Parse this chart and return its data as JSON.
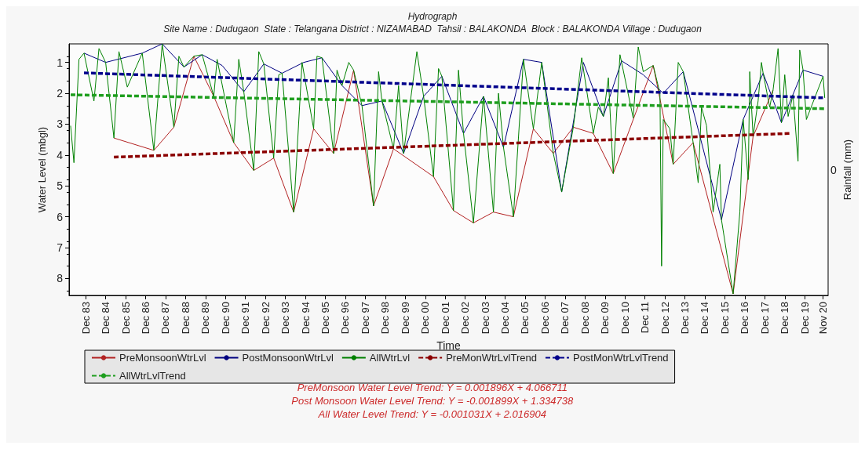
{
  "chart_data": {
    "type": "line",
    "title": "Hydrograph",
    "subtitle": "Site Name : Dudugaon  State : Telangana District : NIZAMABAD  Tahsil : BALAKONDA  Block : BALAKONDA Village : Dudugaon",
    "xlabel": "Time",
    "ylabel": "Water Level (mbgl)",
    "y2label": "Rainfall (mm)",
    "ylim": [
      8.55,
      0.4
    ],
    "yticks": [
      1,
      2,
      3,
      4,
      5,
      6,
      7,
      8
    ],
    "xlim": [
      "1983-02",
      "2021-02"
    ],
    "xticks": [
      {
        "value": "1983-12",
        "label": "Dec 83"
      },
      {
        "value": "1984-12",
        "label": "Dec 84"
      },
      {
        "value": "1985-12",
        "label": "Dec 85"
      },
      {
        "value": "1986-12",
        "label": "Dec 86"
      },
      {
        "value": "1987-12",
        "label": "Dec 87"
      },
      {
        "value": "1988-12",
        "label": "Dec 88"
      },
      {
        "value": "1989-12",
        "label": "Dec 89"
      },
      {
        "value": "1990-12",
        "label": "Dec 90"
      },
      {
        "value": "1991-12",
        "label": "Dec 91"
      },
      {
        "value": "1992-12",
        "label": "Dec 92"
      },
      {
        "value": "1993-12",
        "label": "Dec 93"
      },
      {
        "value": "1994-12",
        "label": "Dec 94"
      },
      {
        "value": "1995-12",
        "label": "Dec 95"
      },
      {
        "value": "1996-12",
        "label": "Dec 96"
      },
      {
        "value": "1997-12",
        "label": "Dec 97"
      },
      {
        "value": "1998-12",
        "label": "Dec 98"
      },
      {
        "value": "1999-12",
        "label": "Dec 99"
      },
      {
        "value": "2000-12",
        "label": "Dec 00"
      },
      {
        "value": "2001-12",
        "label": "Dec 01"
      },
      {
        "value": "2002-12",
        "label": "Dec 02"
      },
      {
        "value": "2003-12",
        "label": "Dec 03"
      },
      {
        "value": "2004-12",
        "label": "Dec 04"
      },
      {
        "value": "2005-12",
        "label": "Dec 05"
      },
      {
        "value": "2006-12",
        "label": "Dec 06"
      },
      {
        "value": "2007-12",
        "label": "Dec 07"
      },
      {
        "value": "2008-12",
        "label": "Dec 08"
      },
      {
        "value": "2009-12",
        "label": "Dec 09"
      },
      {
        "value": "2010-12",
        "label": "Dec 10"
      },
      {
        "value": "2011-12",
        "label": "Dec 11"
      },
      {
        "value": "2012-12",
        "label": "Dec 12"
      },
      {
        "value": "2013-12",
        "label": "Dec 13"
      },
      {
        "value": "2014-12",
        "label": "Dec 14"
      },
      {
        "value": "2015-12",
        "label": "Dec 15"
      },
      {
        "value": "2016-12",
        "label": "Dec 16"
      },
      {
        "value": "2017-12",
        "label": "Dec 17"
      },
      {
        "value": "2018-12",
        "label": "Dec 18"
      },
      {
        "value": "2019-12",
        "label": "Dec 19"
      },
      {
        "value": "2020-11",
        "label": "Nov 20"
      }
    ],
    "grid": false,
    "marker": "none",
    "legend": "bottom",
    "series": [
      {
        "name": "PreMonsoonWtrLvl",
        "color": "#b22222",
        "line_style": "solid",
        "x": [
          "1985-05",
          "1987-05",
          "1988-05",
          "1989-05",
          "1990-05",
          "1991-05",
          "1992-05",
          "1993-05",
          "1994-05",
          "1995-05",
          "1996-05",
          "1997-05",
          "1998-05",
          "1999-05",
          "2001-05",
          "2002-05",
          "2003-05",
          "2004-05",
          "2005-05",
          "2006-05",
          "2007-05",
          "2008-05",
          "2009-05",
          "2010-05",
          "2012-05",
          "2013-05",
          "2014-05",
          "2016-05",
          "2017-05",
          "2018-05"
        ],
        "values": [
          3.45,
          3.85,
          3.1,
          0.8,
          2.1,
          3.6,
          4.5,
          4.1,
          5.85,
          3.15,
          3.95,
          1.25,
          5.65,
          3.8,
          4.7,
          5.8,
          6.2,
          5.85,
          6.0,
          3.15,
          3.95,
          3.1,
          3.3,
          4.6,
          1.1,
          4.3,
          3.6,
          8.5,
          3.4,
          1.9
        ]
      },
      {
        "name": "PostMonsoonWtrLvl",
        "color": "#000080",
        "line_style": "solid",
        "x": [
          "1983-11",
          "1984-12",
          "1986-10",
          "1987-10",
          "1988-11",
          "1989-10",
          "1990-10",
          "1991-11",
          "1992-11",
          "1993-10",
          "1994-11",
          "1995-10",
          "1996-10",
          "1997-10",
          "1998-10",
          "1999-11",
          "2000-11",
          "2001-10",
          "2002-11",
          "2003-11",
          "2004-11",
          "2005-11",
          "2006-10",
          "2007-10",
          "2008-11",
          "2009-11",
          "2010-10",
          "2011-11",
          "2012-11",
          "2013-11",
          "2015-10",
          "2016-11",
          "2017-11",
          "2018-10",
          "2019-11",
          "2020-11"
        ],
        "values": [
          0.7,
          1.0,
          0.7,
          0.4,
          1.15,
          0.75,
          1.1,
          1.95,
          1.05,
          1.35,
          1.0,
          0.85,
          1.75,
          2.4,
          2.25,
          3.95,
          2.1,
          1.45,
          3.3,
          2.1,
          3.75,
          0.9,
          1.0,
          5.2,
          1.0,
          2.75,
          0.95,
          1.4,
          2.0,
          1.3,
          6.1,
          2.85,
          1.35,
          2.95,
          1.25,
          1.45
        ]
      },
      {
        "name": "AllWtrLvl",
        "color": "#008000",
        "line_style": "solid",
        "x": [
          "1983-03",
          "1983-05",
          "1983-08",
          "1983-11",
          "1984-05",
          "1984-08",
          "1984-12",
          "1985-05",
          "1985-08",
          "1986-01",
          "1986-10",
          "1987-05",
          "1987-10",
          "1988-05",
          "1988-08",
          "1988-11",
          "1989-05",
          "1989-10",
          "1990-05",
          "1990-07",
          "1991-05",
          "1991-08",
          "1991-11",
          "1992-05",
          "1992-08",
          "1992-11",
          "1993-05",
          "1993-08",
          "1993-10",
          "1994-05",
          "1994-10",
          "1995-05",
          "1995-07",
          "1995-10",
          "1996-05",
          "1996-07",
          "1996-10",
          "1997-02",
          "1997-05",
          "1997-10",
          "1998-05",
          "1998-08",
          "1998-10",
          "1999-05",
          "1999-08",
          "1999-11",
          "2000-07",
          "2000-11",
          "2001-05",
          "2001-08",
          "2001-10",
          "2002-05",
          "2002-08",
          "2002-11",
          "2003-05",
          "2003-11",
          "2004-05",
          "2004-08",
          "2004-11",
          "2005-05",
          "2005-11",
          "2006-05",
          "2006-10",
          "2007-05",
          "2007-10",
          "2008-05",
          "2008-10",
          "2009-05",
          "2009-08",
          "2009-11",
          "2010-02",
          "2010-05",
          "2010-09",
          "2011-05",
          "2011-08",
          "2011-11",
          "2012-05",
          "2012-09",
          "2012-10",
          "2012-11",
          "2013-03",
          "2013-05",
          "2013-08",
          "2013-11",
          "2014-05",
          "2014-08",
          "2014-10",
          "2015-01",
          "2015-05",
          "2015-09",
          "2015-10",
          "2016-05",
          "2016-09",
          "2016-11",
          "2017-02",
          "2017-03",
          "2017-05",
          "2017-08",
          "2017-10",
          "2017-11",
          "2018-03",
          "2018-05",
          "2018-08",
          "2018-10",
          "2018-12",
          "2019-02",
          "2019-05",
          "2019-08",
          "2019-09",
          "2019-11",
          "2020-01",
          "2020-11",
          "2020-12"
        ],
        "values": [
          3.05,
          4.25,
          0.9,
          0.7,
          2.25,
          0.55,
          1.0,
          3.45,
          0.65,
          1.8,
          0.7,
          3.85,
          0.4,
          3.1,
          0.8,
          1.15,
          0.8,
          0.75,
          2.1,
          0.9,
          3.6,
          0.9,
          1.95,
          4.5,
          0.65,
          1.05,
          4.1,
          1.4,
          1.35,
          5.85,
          1.0,
          3.15,
          0.8,
          0.85,
          3.95,
          1.25,
          1.75,
          1.0,
          1.25,
          2.4,
          5.65,
          1.3,
          2.25,
          3.8,
          1.75,
          3.95,
          0.65,
          2.1,
          4.7,
          1.2,
          1.45,
          5.8,
          1.25,
          3.3,
          6.2,
          2.1,
          5.85,
          2.0,
          3.75,
          6.0,
          0.9,
          3.15,
          1.0,
          3.95,
          5.2,
          3.1,
          0.85,
          3.3,
          2.45,
          2.75,
          1.5,
          4.6,
          0.75,
          2.8,
          0.5,
          1.3,
          1.1,
          2.0,
          7.6,
          2.85,
          3.15,
          4.3,
          1.0,
          1.3,
          3.6,
          4.9,
          2.45,
          3.05,
          5.85,
          4.3,
          6.1,
          8.5,
          5.85,
          2.85,
          4.8,
          1.3,
          3.4,
          2.25,
          1.0,
          1.35,
          2.45,
          1.9,
          0.55,
          2.95,
          1.4,
          2.75,
          2.05,
          4.2,
          0.6,
          1.25,
          2.85,
          1.45,
          2.15
        ]
      },
      {
        "name": "PreMonWtrLvlTrend",
        "color": "#8b0000",
        "line_style": "dashed",
        "x": [
          "1985-05",
          "2019-04"
        ],
        "values": [
          4.07,
          3.3
        ]
      },
      {
        "name": "PostMonWtrLvlTrend",
        "color": "#00008b",
        "line_style": "dashed",
        "x": [
          "1983-11",
          "2020-12"
        ],
        "values": [
          1.34,
          2.15
        ]
      },
      {
        "name": "AllWtrLvlTrend",
        "color": "#1e9e1e",
        "line_style": "dashed",
        "x": [
          "1983-03",
          "2020-12"
        ],
        "values": [
          2.05,
          2.5
        ]
      }
    ],
    "annotations": [
      "PreMonsoon Water Level Trend: Y = 0.001896X + 4.066711",
      "Post Monsoon Water Level Trend: Y = -0.001899X + 1.334738",
      "All Water Level Trend: Y = -0.001031X + 2.016904",
      "0"
    ]
  }
}
